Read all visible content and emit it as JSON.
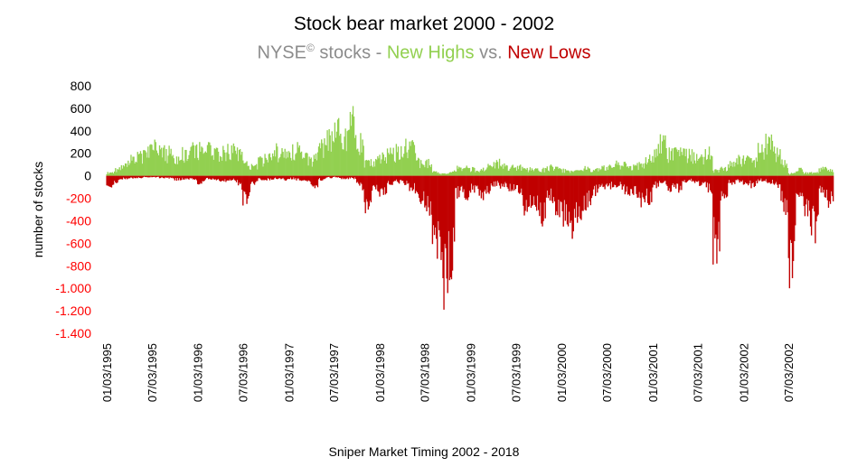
{
  "title": "Stock bear market 2000 - 2002",
  "subtitle": {
    "prefix": "NYSE",
    "sup": "©",
    "mid1": " stocks - ",
    "highs": "New Highs",
    "mid2": " vs. ",
    "lows": "New Lows"
  },
  "footer": "Sniper Market Timing 2002 - 2018",
  "colors": {
    "highs": "#92d050",
    "lows": "#c00000",
    "neg_tick": "#ff0000",
    "subtitle_gray": "#8c8c8c"
  },
  "chart_data": {
    "type": "bar",
    "ylabel": "number of stocks",
    "ylim": [
      -1400,
      800
    ],
    "yticks": [
      800,
      600,
      400,
      200,
      0,
      -200,
      -400,
      -600,
      -800,
      -1000,
      -1200,
      -1400
    ],
    "ytick_labels": [
      "800",
      "600",
      "400",
      "200",
      "0",
      "-200",
      "-400",
      "-600",
      "-800",
      "-1.000",
      "-1.200",
      "-1.400"
    ],
    "x_start": "01/03/1995",
    "x_end": "12/31/2002",
    "xtick_labels": [
      "01/03/1995",
      "07/03/1995",
      "01/03/1996",
      "07/03/1996",
      "01/03/1997",
      "07/03/1997",
      "01/03/1998",
      "07/03/1998",
      "01/03/1999",
      "07/03/1999",
      "01/03/2000",
      "07/03/2000",
      "01/03/2001",
      "07/03/2001",
      "01/03/2002",
      "07/03/2002"
    ],
    "series": [
      {
        "name": "New Highs",
        "points": [
          [
            "1995-01",
            30
          ],
          [
            "1995-02",
            60
          ],
          [
            "1995-03",
            110
          ],
          [
            "1995-04",
            170
          ],
          [
            "1995-05",
            220
          ],
          [
            "1995-06",
            260
          ],
          [
            "1995-07",
            300
          ],
          [
            "1995-08",
            250
          ],
          [
            "1995-09",
            240
          ],
          [
            "1995-10",
            170
          ],
          [
            "1995-11",
            230
          ],
          [
            "1995-12",
            270
          ],
          [
            "1996-01",
            260
          ],
          [
            "1996-02",
            300
          ],
          [
            "1996-03",
            250
          ],
          [
            "1996-04",
            230
          ],
          [
            "1996-05",
            270
          ],
          [
            "1996-06",
            230
          ],
          [
            "1996-07",
            130
          ],
          [
            "1996-08",
            90
          ],
          [
            "1996-09",
            160
          ],
          [
            "1996-10",
            200
          ],
          [
            "1996-11",
            260
          ],
          [
            "1996-12",
            240
          ],
          [
            "1997-01",
            280
          ],
          [
            "1997-02",
            270
          ],
          [
            "1997-03",
            200
          ],
          [
            "1997-04",
            150
          ],
          [
            "1997-05",
            290
          ],
          [
            "1997-06",
            360
          ],
          [
            "1997-07",
            500
          ],
          [
            "1997-08",
            420
          ],
          [
            "1997-09",
            620
          ],
          [
            "1997-10",
            380
          ],
          [
            "1997-11",
            140
          ],
          [
            "1997-12",
            150
          ],
          [
            "1998-01",
            190
          ],
          [
            "1998-02",
            250
          ],
          [
            "1998-03",
            260
          ],
          [
            "1998-04",
            330
          ],
          [
            "1998-05",
            300
          ],
          [
            "1998-06",
            140
          ],
          [
            "1998-07",
            150
          ],
          [
            "1998-08",
            40
          ],
          [
            "1998-09",
            20
          ],
          [
            "1998-10",
            30
          ],
          [
            "1998-11",
            80
          ],
          [
            "1998-12",
            90
          ],
          [
            "1999-01",
            70
          ],
          [
            "1999-02",
            60
          ],
          [
            "1999-03",
            90
          ],
          [
            "1999-04",
            140
          ],
          [
            "1999-05",
            110
          ],
          [
            "1999-06",
            90
          ],
          [
            "1999-07",
            90
          ],
          [
            "1999-08",
            70
          ],
          [
            "1999-09",
            60
          ],
          [
            "1999-10",
            60
          ],
          [
            "1999-11",
            90
          ],
          [
            "1999-12",
            80
          ],
          [
            "2000-01",
            60
          ],
          [
            "2000-02",
            40
          ],
          [
            "2000-03",
            50
          ],
          [
            "2000-04",
            80
          ],
          [
            "2000-05",
            60
          ],
          [
            "2000-06",
            80
          ],
          [
            "2000-07",
            90
          ],
          [
            "2000-08",
            120
          ],
          [
            "2000-09",
            110
          ],
          [
            "2000-10",
            100
          ],
          [
            "2000-11",
            110
          ],
          [
            "2000-12",
            150
          ],
          [
            "2001-01",
            240
          ],
          [
            "2001-02",
            360
          ],
          [
            "2001-03",
            220
          ],
          [
            "2001-04",
            230
          ],
          [
            "2001-05",
            240
          ],
          [
            "2001-06",
            210
          ],
          [
            "2001-07",
            190
          ],
          [
            "2001-08",
            260
          ],
          [
            "2001-09",
            50
          ],
          [
            "2001-10",
            70
          ],
          [
            "2001-11",
            120
          ],
          [
            "2001-12",
            170
          ],
          [
            "2002-01",
            180
          ],
          [
            "2002-02",
            140
          ],
          [
            "2002-03",
            280
          ],
          [
            "2002-04",
            340
          ],
          [
            "2002-05",
            250
          ],
          [
            "2002-06",
            140
          ],
          [
            "2002-07",
            20
          ],
          [
            "2002-08",
            70
          ],
          [
            "2002-09",
            30
          ],
          [
            "2002-10",
            30
          ],
          [
            "2002-11",
            80
          ],
          [
            "2002-12",
            60
          ]
        ]
      },
      {
        "name": "New Lows",
        "points": [
          [
            "1995-01",
            -100
          ],
          [
            "1995-02",
            -60
          ],
          [
            "1995-03",
            -30
          ],
          [
            "1995-04",
            -25
          ],
          [
            "1995-05",
            -20
          ],
          [
            "1995-06",
            -15
          ],
          [
            "1995-07",
            -15
          ],
          [
            "1995-08",
            -20
          ],
          [
            "1995-09",
            -20
          ],
          [
            "1995-10",
            -40
          ],
          [
            "1995-11",
            -30
          ],
          [
            "1995-12",
            -30
          ],
          [
            "1996-01",
            -70
          ],
          [
            "1996-02",
            -30
          ],
          [
            "1996-03",
            -40
          ],
          [
            "1996-04",
            -50
          ],
          [
            "1996-05",
            -40
          ],
          [
            "1996-06",
            -60
          ],
          [
            "1996-07",
            -250
          ],
          [
            "1996-08",
            -80
          ],
          [
            "1996-09",
            -40
          ],
          [
            "1996-10",
            -40
          ],
          [
            "1996-11",
            -30
          ],
          [
            "1996-12",
            -40
          ],
          [
            "1997-01",
            -30
          ],
          [
            "1997-02",
            -40
          ],
          [
            "1997-03",
            -50
          ],
          [
            "1997-04",
            -110
          ],
          [
            "1997-05",
            -40
          ],
          [
            "1997-06",
            -20
          ],
          [
            "1997-07",
            -15
          ],
          [
            "1997-08",
            -30
          ],
          [
            "1997-09",
            -20
          ],
          [
            "1997-10",
            -60
          ],
          [
            "1997-11",
            -300
          ],
          [
            "1997-12",
            -120
          ],
          [
            "1998-01",
            -170
          ],
          [
            "1998-02",
            -80
          ],
          [
            "1998-03",
            -60
          ],
          [
            "1998-04",
            -80
          ],
          [
            "1998-05",
            -120
          ],
          [
            "1998-06",
            -250
          ],
          [
            "1998-07",
            -280
          ],
          [
            "1998-08",
            -560
          ],
          [
            "1998-09",
            -1190
          ],
          [
            "1998-10",
            -920
          ],
          [
            "1998-11",
            -190
          ],
          [
            "1998-12",
            -200
          ],
          [
            "1999-01",
            -150
          ],
          [
            "1999-02",
            -200
          ],
          [
            "1999-03",
            -160
          ],
          [
            "1999-04",
            -90
          ],
          [
            "1999-05",
            -100
          ],
          [
            "1999-06",
            -120
          ],
          [
            "1999-07",
            -160
          ],
          [
            "1999-08",
            -320
          ],
          [
            "1999-09",
            -260
          ],
          [
            "1999-10",
            -450
          ],
          [
            "1999-11",
            -220
          ],
          [
            "1999-12",
            -350
          ],
          [
            "2000-01",
            -400
          ],
          [
            "2000-02",
            -560
          ],
          [
            "2000-03",
            -380
          ],
          [
            "2000-04",
            -280
          ],
          [
            "2000-05",
            -180
          ],
          [
            "2000-06",
            -100
          ],
          [
            "2000-07",
            -120
          ],
          [
            "2000-08",
            -90
          ],
          [
            "2000-09",
            -140
          ],
          [
            "2000-10",
            -170
          ],
          [
            "2000-11",
            -280
          ],
          [
            "2000-12",
            -260
          ],
          [
            "2001-01",
            -110
          ],
          [
            "2001-02",
            -60
          ],
          [
            "2001-03",
            -140
          ],
          [
            "2001-04",
            -150
          ],
          [
            "2001-05",
            -60
          ],
          [
            "2001-06",
            -50
          ],
          [
            "2001-07",
            -80
          ],
          [
            "2001-08",
            -70
          ],
          [
            "2001-09",
            -780
          ],
          [
            "2001-10",
            -200
          ],
          [
            "2001-11",
            -80
          ],
          [
            "2001-12",
            -60
          ],
          [
            "2002-01",
            -70
          ],
          [
            "2002-02",
            -100
          ],
          [
            "2002-03",
            -50
          ],
          [
            "2002-04",
            -60
          ],
          [
            "2002-05",
            -80
          ],
          [
            "2002-06",
            -200
          ],
          [
            "2002-07",
            -910
          ],
          [
            "2002-08",
            -150
          ],
          [
            "2002-09",
            -360
          ],
          [
            "2002-10",
            -600
          ],
          [
            "2002-11",
            -150
          ],
          [
            "2002-12",
            -250
          ]
        ]
      }
    ]
  }
}
